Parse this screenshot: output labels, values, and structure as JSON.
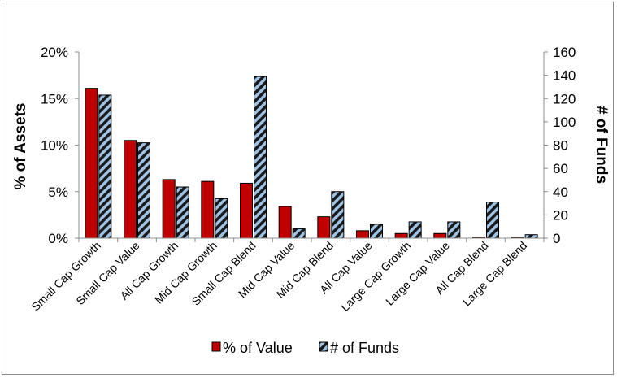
{
  "chart_data": {
    "type": "bar",
    "categories": [
      "Small Cap Growth",
      "Small Cap Value",
      "All Cap Growth",
      "Mid Cap Growth",
      "Small Cap Blend",
      "Mid Cap Value",
      "Mid Cap Blend",
      "All Cap Value",
      "Large Cap Growth",
      "Large Cap Value",
      "All Cap Blend",
      "Large Cap Blend"
    ],
    "series": [
      {
        "name": "% of Value",
        "axis": "left",
        "values": [
          16.1,
          10.5,
          6.3,
          6.1,
          5.9,
          3.4,
          2.3,
          0.8,
          0.5,
          0.5,
          0.1,
          0.1
        ],
        "color": "#c00000"
      },
      {
        "name": "# of Funds",
        "axis": "right",
        "values": [
          123,
          82,
          44,
          34,
          139,
          8,
          40,
          12,
          14,
          14,
          31,
          3
        ],
        "color": "#9dc3e6",
        "pattern": "dark diagonal stripes"
      }
    ],
    "ylabel": "% of Assets",
    "ylabel_right": "# of Funds",
    "ylim": [
      0,
      20
    ],
    "ylim_right": [
      0,
      160
    ],
    "yticks": [
      "0%",
      "5%",
      "10%",
      "15%",
      "20%"
    ],
    "yticks_right": [
      "0",
      "20",
      "40",
      "60",
      "80",
      "100",
      "120",
      "140",
      "160"
    ],
    "legend": "bottom",
    "grid": false
  }
}
